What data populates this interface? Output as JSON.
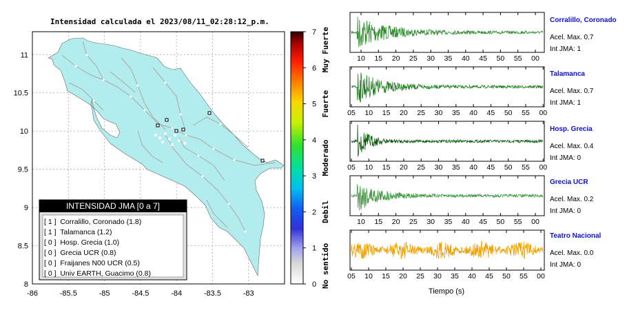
{
  "map": {
    "title": "Intensidad calculada el 2023/08/11_02:28:12_p.m.",
    "xlim": [
      -86,
      -82.5
    ],
    "ylim": [
      8,
      11.3
    ],
    "x_ticks": [
      "-86",
      "-85.5",
      "-85",
      "-84.5",
      "-84",
      "-83.5",
      "-83"
    ],
    "y_ticks": [
      "8",
      "8.5",
      "9",
      "9.5",
      "10",
      "10.5",
      "11"
    ],
    "land_color": "#b2ecec",
    "grid": true
  },
  "legend": {
    "header": "INTENSIDAD JMA [0 a 7]",
    "items": [
      "[ 1 ]  Corralillo, Coronado (1.8)",
      "[ 1 ]  Talamanca (1.2)",
      "[ 0 ]  Hosp. Grecia (1.0)",
      "[ 0 ]  Grecia UCR (0.8)",
      "[ 0 ]  Fraijanes N00 UCR (0.5)",
      "[ 0 ]  Univ EARTH, Guacimo (0.8)"
    ]
  },
  "colorbar": {
    "ticks": [
      "0",
      "1",
      "2",
      "3",
      "4",
      "5",
      "6",
      "7"
    ],
    "labels": [
      "No sentido",
      "Debil",
      "Moderado",
      "Fuerte",
      "Muy Fuerte"
    ],
    "range": [
      0,
      7
    ]
  },
  "chart_data": [
    {
      "type": "map",
      "stations": [
        {
          "name": "Corralillo, Coronado",
          "jma": 1,
          "value": 1.8,
          "lon": -83.95,
          "lat": 9.98
        },
        {
          "name": "Talamanca",
          "jma": 1,
          "value": 1.2,
          "lon": -82.83,
          "lat": 9.62
        },
        {
          "name": "Hosp. Grecia",
          "jma": 0,
          "value": 1.0,
          "lon": -84.31,
          "lat": 10.07
        },
        {
          "name": "Grecia UCR",
          "jma": 0,
          "value": 0.8,
          "lon": -84.2,
          "lat": 10.12
        },
        {
          "name": "Fraijanes N00 UCR",
          "jma": 0,
          "value": 0.5,
          "lon": -84.18,
          "lat": 10.02
        },
        {
          "name": "Univ EARTH, Guacimo",
          "jma": 0,
          "value": 0.8,
          "lon": -83.6,
          "lat": 10.22
        }
      ]
    },
    {
      "type": "line",
      "xlabel": "Tiempo (s)",
      "x_tick_labels": [
        "05",
        "10",
        "15",
        "20",
        "25",
        "30",
        "35",
        "40",
        "45",
        "50",
        "55",
        "00",
        "05"
      ],
      "bottom_x_tick_labels": [
        "05",
        "10",
        "15",
        "20",
        "25",
        "30",
        "35",
        "40",
        "45",
        "50",
        "55",
        "00"
      ],
      "panels": [
        {
          "name": "Corralillo, Coronado",
          "acel_label": "Acel. Max. 0.7",
          "jma_label": "Int JMA: 1",
          "color": "#2e8b2e",
          "x_offset": 0,
          "duration": 55,
          "peak": 0.7,
          "decay": 0.15
        },
        {
          "name": "Talamanca",
          "acel_label": "Acel. Max. 0.7",
          "jma_label": "Int JMA: 1",
          "color": "#1e7d1e",
          "x_offset": 0,
          "duration": 55,
          "peak": 0.7,
          "decay": 0.12
        },
        {
          "name": "Hosp. Grecia",
          "acel_label": "Acel. Max. 0.4",
          "jma_label": "Int JMA: 0",
          "color": "#0f5d0f",
          "x_offset": 0,
          "duration": 55,
          "peak": 0.4,
          "decay": 0.06
        },
        {
          "name": "Grecia UCR",
          "acel_label": "Acel. Max. 0.2",
          "jma_label": "Int JMA: 0",
          "color": "#3c963c",
          "x_offset": 0,
          "duration": 55,
          "peak": 0.2,
          "decay": 0.1
        },
        {
          "name": "Teatro Nacional",
          "acel_label": "Acel. Max. 0.0",
          "jma_label": "Int JMA: 0",
          "color": "#f0a000",
          "x_offset": 0,
          "duration": 55,
          "peak": 0.05,
          "decay": 0.0
        }
      ]
    }
  ]
}
